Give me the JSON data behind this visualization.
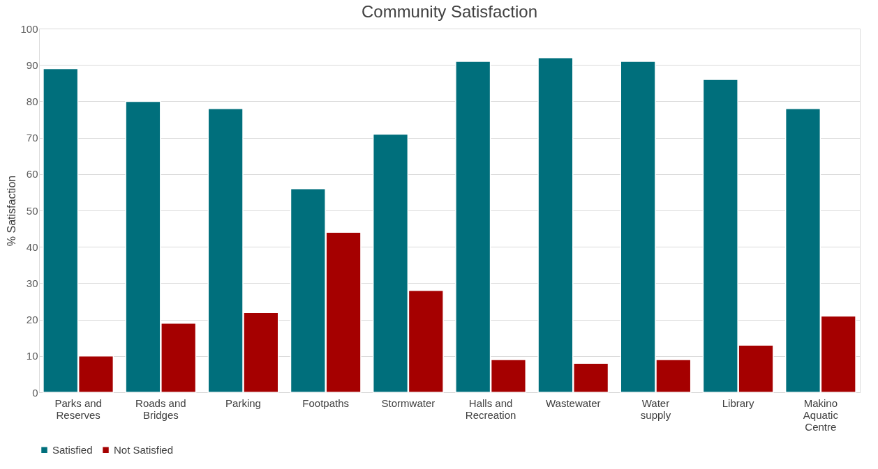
{
  "chart_data": {
    "type": "bar",
    "title": "Community Satisfaction",
    "ylabel": "% Satisfaction",
    "categories": [
      "Parks and Reserves",
      "Roads and Bridges",
      "Parking",
      "Footpaths",
      "Stormwater",
      "Halls and Recreation",
      "Wastewater",
      "Water supply",
      "Library",
      "Makino Aquatic Centre"
    ],
    "series": [
      {
        "name": "Satisfied",
        "color": "#006f7c",
        "values": [
          89,
          80,
          78,
          56,
          71,
          91,
          92,
          91,
          86,
          78
        ]
      },
      {
        "name": "Not Satisfied",
        "color": "#a50000",
        "values": [
          10,
          19,
          22,
          44,
          28,
          9,
          8,
          9,
          13,
          21
        ]
      }
    ],
    "ylim": [
      0,
      100
    ],
    "yticks": [
      0,
      10,
      20,
      30,
      40,
      50,
      60,
      70,
      80,
      90,
      100
    ],
    "grid": "y",
    "legend": "bottom"
  }
}
